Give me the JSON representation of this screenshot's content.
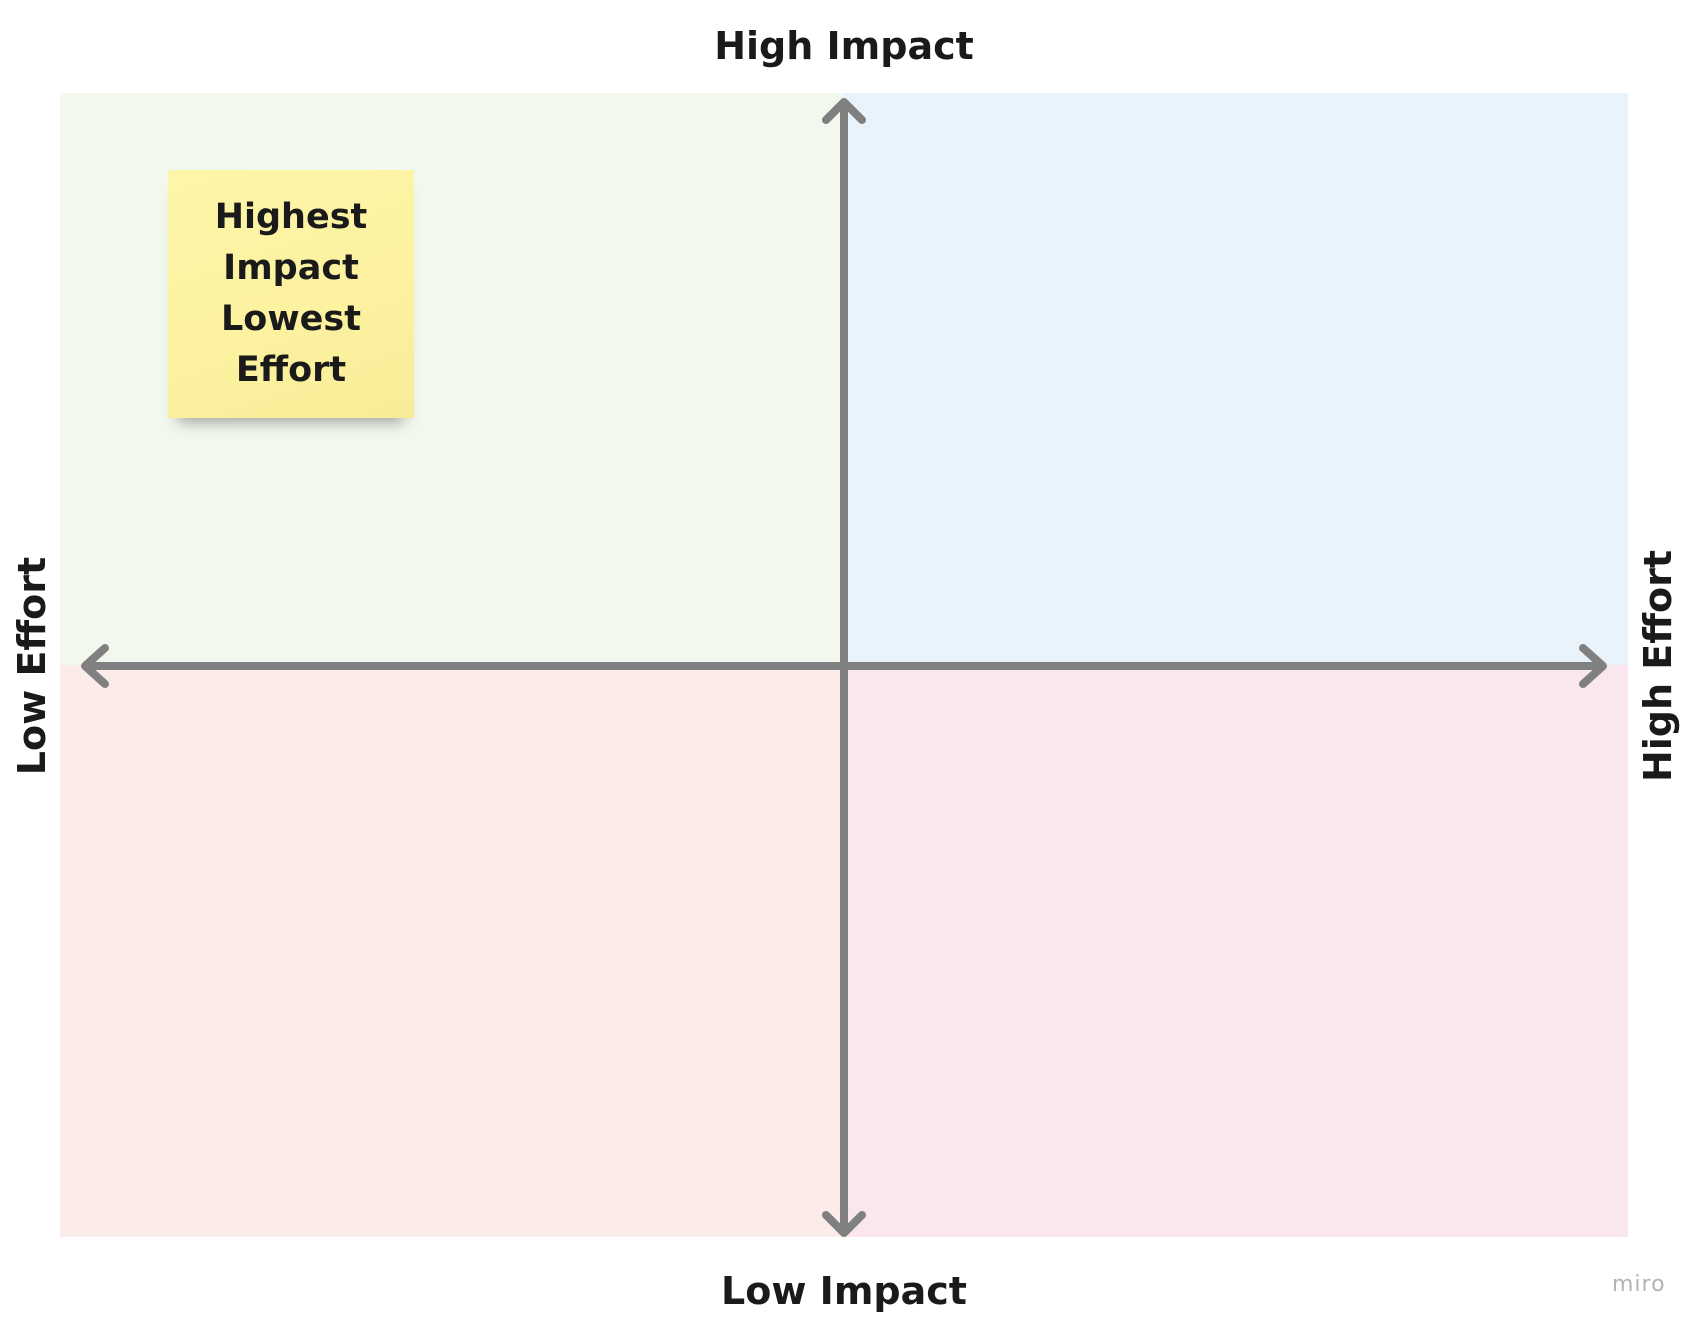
{
  "board": {
    "title_top": "High Impact",
    "title_bottom": "Low Impact",
    "title_left": "Low Effort",
    "title_right": "High Effort"
  },
  "quadrants": [
    {
      "name": "top-left",
      "color": "#f2f8ee"
    },
    {
      "name": "top-right",
      "color": "#e9f3fc"
    },
    {
      "name": "bottom-left",
      "color": "#fcece9"
    },
    {
      "name": "bottom-right",
      "color": "#fae6ee"
    }
  ],
  "axis_color": "#808080",
  "sticky_note": {
    "text": "Highest Impact Lowest Effort",
    "color": "#fdf5a6"
  },
  "watermark": "miro"
}
